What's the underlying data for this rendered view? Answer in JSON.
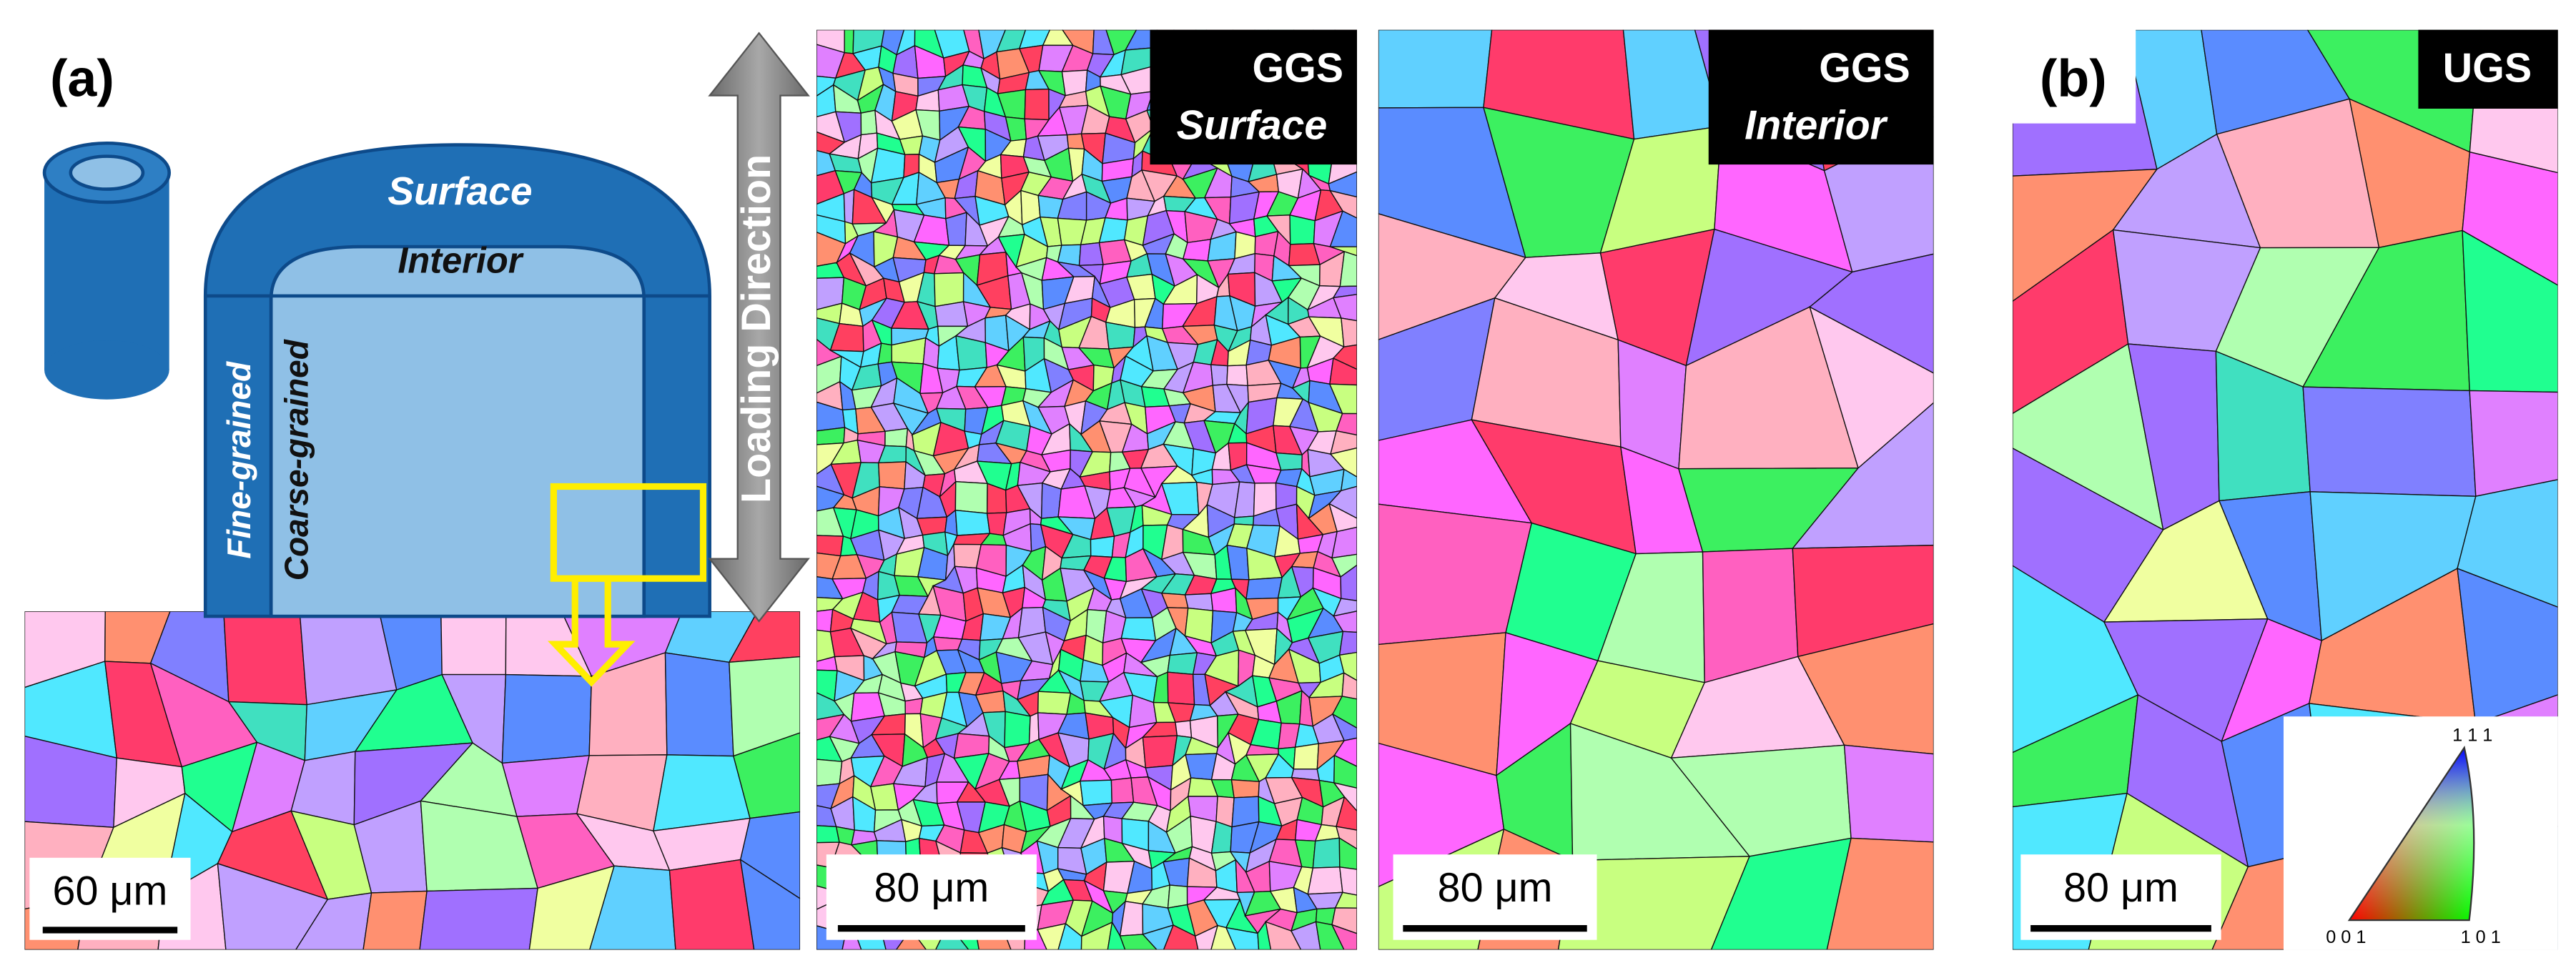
{
  "panel_a": {
    "label": "(a)",
    "schematic": {
      "surface": "Surface",
      "interior": "Interior",
      "fine": "Fine-grained",
      "coarse": "Coarse-grained"
    },
    "loading_direction": "Loading Direction",
    "scale_bar": "60 μm"
  },
  "maps": [
    {
      "title": "GGS",
      "subtitle": "Surface",
      "scale_bar": "80 μm"
    },
    {
      "title": "GGS",
      "subtitle": "Interior",
      "scale_bar": "80 μm"
    }
  ],
  "panel_b": {
    "label": "(b)",
    "map": {
      "title": "UGS",
      "scale_bar": "80 μm"
    },
    "legend": {
      "top": "1 1 1",
      "left": "0 0 1",
      "right": "1 0 1"
    }
  }
}
